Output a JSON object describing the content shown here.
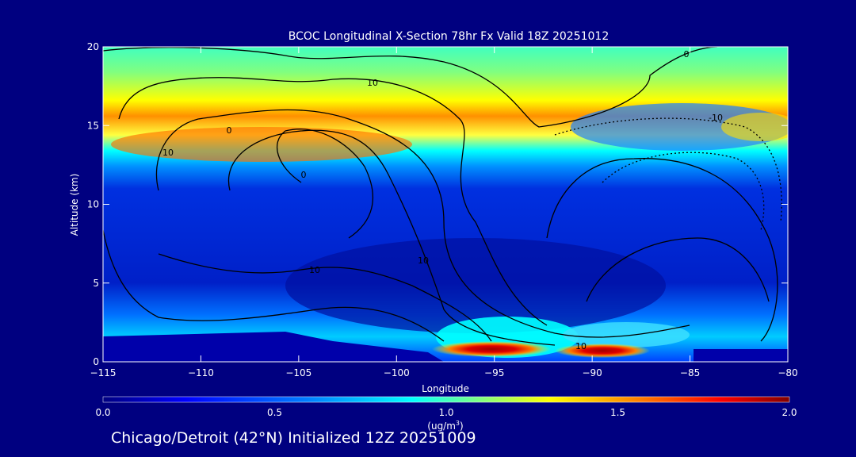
{
  "chart_data": {
    "type": "heatmap",
    "title": "BCOC Longitudinal X-Section 78hr  Fx Valid 18Z 20251012",
    "xlabel": "Longitude",
    "ylabel": "Altitude (km)",
    "xlim": [
      -115,
      -80
    ],
    "ylim": [
      0,
      20
    ],
    "x_ticks": [
      -115,
      -110,
      -105,
      -100,
      -95,
      -90,
      -85,
      -80
    ],
    "x_tick_labels": [
      "−115",
      "−110",
      "−105",
      "−100",
      "−95",
      "−90",
      "−85",
      "−80"
    ],
    "y_ticks": [
      0,
      5,
      10,
      15,
      20
    ],
    "y_tick_labels": [
      "0",
      "5",
      "10",
      "15",
      "20"
    ],
    "colorbar": {
      "min": 0.0,
      "max": 2.0,
      "ticks": [
        0.0,
        0.5,
        1.0,
        1.5,
        2.0
      ],
      "tick_labels": [
        "0.0",
        "0.5",
        "1.0",
        "1.5",
        "2.0"
      ],
      "units_line1": "(ug/m",
      "units_sup": "3",
      "units_line2": ")",
      "colors": [
        "#000080",
        "#0000ff",
        "#0080ff",
        "#00ffff",
        "#80ff80",
        "#ffff00",
        "#ff8000",
        "#ff0000",
        "#800000"
      ]
    },
    "contour_labels": [
      "10",
      "10",
      "10",
      "10",
      "10",
      "0",
      "0",
      "0",
      "-10"
    ],
    "terrain_color": "#0000aa"
  },
  "footer": "Chicago/Detroit (42°N) Initialized 12Z 20251009"
}
